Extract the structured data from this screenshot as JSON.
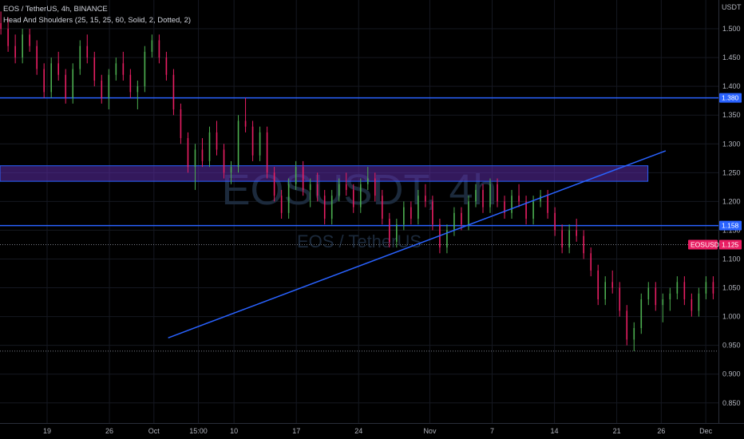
{
  "header": {
    "symbol_line": "EOS / TetherUS, 4h, BINANCE",
    "indicator_line": "Head And Shoulders (25, 15, 25, 60, Solid, 2, Dotted, 2)"
  },
  "watermark": {
    "main": "EOSUSDT, 4h",
    "sub": "EOS / TetherUS"
  },
  "chart_data": {
    "type": "candlestick",
    "currency": "USDT",
    "ylim": [
      0.815,
      1.55
    ],
    "y_ticks": [
      "1.500",
      "1.450",
      "1.400",
      "1.350",
      "1.300",
      "1.250",
      "1.200",
      "1.150",
      "1.100",
      "1.050",
      "1.000",
      "0.950",
      "0.900",
      "0.850"
    ],
    "x_ticks": [
      {
        "label": "19",
        "day": 0
      },
      {
        "label": "26",
        "day": 7
      },
      {
        "label": "Oct",
        "day": 12
      },
      {
        "label": "15:00",
        "day": 17
      },
      {
        "label": "10",
        "day": 21
      },
      {
        "label": "17",
        "day": 28
      },
      {
        "label": "24",
        "day": 35
      },
      {
        "label": "Nov",
        "day": 43
      },
      {
        "label": "7",
        "day": 50
      },
      {
        "label": "14",
        "day": 57
      },
      {
        "label": "21",
        "day": 64
      },
      {
        "label": "26",
        "day": 69
      },
      {
        "label": "Dec",
        "day": 74
      }
    ],
    "horizontal_levels": [
      {
        "value": 1.38,
        "label": "1.380",
        "color": "#2962ff"
      },
      {
        "value": 1.158,
        "label": "1.158",
        "color": "#2962ff"
      }
    ],
    "last_price": {
      "value": 1.125,
      "symbol": "EOSUSDT",
      "label": "1.125",
      "color": "#e91e63"
    },
    "dotted_level": 0.94,
    "zone": {
      "top": 1.262,
      "bottom": 1.235,
      "from_day": -6,
      "to_day": 67.5,
      "color": "#5c2ea8"
    },
    "trendline": {
      "from": [
        13.6,
        0.963
      ],
      "to": [
        69.5,
        1.288
      ],
      "color": "#2962ff"
    },
    "colors": {
      "up": "#26a69a",
      "down": "#ef5350",
      "bright_up": "#4caf50",
      "bright_down": "#e91e63"
    },
    "candle_day_step": 0.16667,
    "start_day": -6.0,
    "candles": [
      [
        1.48,
        1.52,
        1.47,
        1.51
      ],
      [
        1.51,
        1.53,
        1.49,
        1.5
      ],
      [
        1.5,
        1.52,
        1.46,
        1.47
      ],
      [
        1.47,
        1.49,
        1.44,
        1.45
      ],
      [
        1.45,
        1.5,
        1.44,
        1.49
      ],
      [
        1.49,
        1.5,
        1.46,
        1.47
      ],
      [
        1.47,
        1.48,
        1.42,
        1.43
      ],
      [
        1.43,
        1.44,
        1.38,
        1.39
      ],
      [
        1.39,
        1.45,
        1.38,
        1.44
      ],
      [
        1.44,
        1.46,
        1.41,
        1.42
      ],
      [
        1.42,
        1.43,
        1.37,
        1.38
      ],
      [
        1.38,
        1.44,
        1.37,
        1.43
      ],
      [
        1.43,
        1.48,
        1.42,
        1.47
      ],
      [
        1.47,
        1.49,
        1.44,
        1.45
      ],
      [
        1.45,
        1.46,
        1.4,
        1.41
      ],
      [
        1.41,
        1.42,
        1.37,
        1.38
      ],
      [
        1.38,
        1.43,
        1.36,
        1.42
      ],
      [
        1.42,
        1.45,
        1.41,
        1.44
      ],
      [
        1.44,
        1.46,
        1.41,
        1.42
      ],
      [
        1.42,
        1.43,
        1.38,
        1.39
      ],
      [
        1.39,
        1.41,
        1.36,
        1.4
      ],
      [
        1.4,
        1.47,
        1.39,
        1.46
      ],
      [
        1.46,
        1.49,
        1.45,
        1.48
      ],
      [
        1.48,
        1.49,
        1.44,
        1.45
      ],
      [
        1.45,
        1.46,
        1.41,
        1.42
      ],
      [
        1.42,
        1.43,
        1.35,
        1.36
      ],
      [
        1.36,
        1.37,
        1.3,
        1.31
      ],
      [
        1.31,
        1.32,
        1.25,
        1.26
      ],
      [
        1.26,
        1.3,
        1.22,
        1.29
      ],
      [
        1.29,
        1.31,
        1.26,
        1.27
      ],
      [
        1.27,
        1.33,
        1.26,
        1.32
      ],
      [
        1.32,
        1.34,
        1.28,
        1.29
      ],
      [
        1.29,
        1.3,
        1.24,
        1.25
      ],
      [
        1.25,
        1.27,
        1.23,
        1.26
      ],
      [
        1.26,
        1.35,
        1.25,
        1.34
      ],
      [
        1.34,
        1.38,
        1.32,
        1.33
      ],
      [
        1.33,
        1.34,
        1.27,
        1.28
      ],
      [
        1.28,
        1.33,
        1.27,
        1.32
      ],
      [
        1.32,
        1.33,
        1.24,
        1.25
      ],
      [
        1.25,
        1.26,
        1.2,
        1.21
      ],
      [
        1.21,
        1.22,
        1.17,
        1.18
      ],
      [
        1.18,
        1.24,
        1.17,
        1.23
      ],
      [
        1.23,
        1.27,
        1.22,
        1.26
      ],
      [
        1.26,
        1.27,
        1.21,
        1.22
      ],
      [
        1.22,
        1.24,
        1.19,
        1.23
      ],
      [
        1.23,
        1.25,
        1.2,
        1.21
      ],
      [
        1.21,
        1.22,
        1.16,
        1.17
      ],
      [
        1.17,
        1.22,
        1.16,
        1.21
      ],
      [
        1.21,
        1.24,
        1.2,
        1.23
      ],
      [
        1.23,
        1.25,
        1.21,
        1.22
      ],
      [
        1.22,
        1.23,
        1.18,
        1.19
      ],
      [
        1.19,
        1.24,
        1.18,
        1.23
      ],
      [
        1.23,
        1.26,
        1.22,
        1.24
      ],
      [
        1.24,
        1.25,
        1.2,
        1.21
      ],
      [
        1.21,
        1.22,
        1.16,
        1.17
      ],
      [
        1.17,
        1.18,
        1.12,
        1.13
      ],
      [
        1.13,
        1.17,
        1.12,
        1.16
      ],
      [
        1.16,
        1.2,
        1.15,
        1.19
      ],
      [
        1.19,
        1.2,
        1.16,
        1.17
      ],
      [
        1.17,
        1.22,
        1.16,
        1.21
      ],
      [
        1.21,
        1.23,
        1.19,
        1.2
      ],
      [
        1.2,
        1.21,
        1.15,
        1.16
      ],
      [
        1.16,
        1.17,
        1.11,
        1.12
      ],
      [
        1.12,
        1.16,
        1.11,
        1.15
      ],
      [
        1.15,
        1.19,
        1.14,
        1.18
      ],
      [
        1.18,
        1.19,
        1.15,
        1.16
      ],
      [
        1.16,
        1.21,
        1.15,
        1.2
      ],
      [
        1.2,
        1.23,
        1.19,
        1.22
      ],
      [
        1.22,
        1.23,
        1.18,
        1.19
      ],
      [
        1.19,
        1.24,
        1.18,
        1.23
      ],
      [
        1.23,
        1.24,
        1.19,
        1.2
      ],
      [
        1.2,
        1.21,
        1.17,
        1.18
      ],
      [
        1.18,
        1.22,
        1.17,
        1.21
      ],
      [
        1.21,
        1.23,
        1.19,
        1.2
      ],
      [
        1.2,
        1.21,
        1.16,
        1.17
      ],
      [
        1.17,
        1.21,
        1.16,
        1.2
      ],
      [
        1.2,
        1.22,
        1.19,
        1.21
      ],
      [
        1.21,
        1.22,
        1.17,
        1.18
      ],
      [
        1.18,
        1.19,
        1.14,
        1.15
      ],
      [
        1.15,
        1.16,
        1.11,
        1.12
      ],
      [
        1.12,
        1.16,
        1.11,
        1.15
      ],
      [
        1.15,
        1.17,
        1.13,
        1.14
      ],
      [
        1.14,
        1.15,
        1.1,
        1.11
      ],
      [
        1.11,
        1.12,
        1.07,
        1.08
      ],
      [
        1.08,
        1.09,
        1.02,
        1.03
      ],
      [
        1.03,
        1.07,
        1.02,
        1.06
      ],
      [
        1.06,
        1.08,
        1.04,
        1.05
      ],
      [
        1.05,
        1.06,
        1.0,
        1.01
      ],
      [
        1.01,
        1.02,
        0.95,
        0.96
      ],
      [
        0.96,
        0.99,
        0.94,
        0.98
      ],
      [
        0.98,
        1.04,
        0.97,
        1.03
      ],
      [
        1.03,
        1.06,
        1.02,
        1.05
      ],
      [
        1.05,
        1.06,
        1.01,
        1.02
      ],
      [
        1.02,
        1.04,
        0.99,
        1.03
      ],
      [
        1.03,
        1.05,
        1.01,
        1.04
      ],
      [
        1.04,
        1.07,
        1.03,
        1.06
      ],
      [
        1.06,
        1.07,
        1.02,
        1.03
      ],
      [
        1.03,
        1.04,
        1.0,
        1.01
      ],
      [
        1.01,
        1.05,
        1.0,
        1.04
      ],
      [
        1.04,
        1.07,
        1.03,
        1.06
      ],
      [
        1.06,
        1.07,
        1.03,
        1.04
      ],
      [
        1.04,
        1.05,
        1.01,
        1.02
      ],
      [
        1.02,
        1.03,
        0.99,
        1.0
      ],
      [
        1.0,
        1.04,
        0.99,
        1.03
      ],
      [
        1.03,
        1.05,
        1.02,
        1.04
      ],
      [
        1.04,
        1.06,
        1.03,
        1.05
      ],
      [
        1.05,
        1.07,
        1.04,
        1.06
      ],
      [
        1.06,
        1.07,
        1.03,
        1.04
      ],
      [
        1.04,
        1.08,
        1.03,
        1.07
      ],
      [
        1.07,
        1.09,
        1.06,
        1.08
      ],
      [
        1.08,
        1.09,
        1.05,
        1.06
      ],
      [
        1.06,
        1.1,
        1.05,
        1.09
      ],
      [
        1.09,
        1.11,
        1.07,
        1.08
      ],
      [
        1.08,
        1.09,
        1.05,
        1.06
      ],
      [
        1.06,
        1.07,
        1.04,
        1.05
      ],
      [
        1.05,
        1.09,
        1.04,
        1.08
      ],
      [
        1.08,
        1.1,
        1.07,
        1.09
      ],
      [
        1.09,
        1.11,
        1.08,
        1.1
      ],
      [
        1.1,
        1.12,
        1.08,
        1.09
      ],
      [
        1.09,
        1.1,
        1.06,
        1.07
      ],
      [
        1.07,
        1.11,
        1.06,
        1.1
      ],
      [
        1.1,
        1.13,
        1.09,
        1.12
      ],
      [
        1.12,
        1.15,
        1.11,
        1.14
      ],
      [
        1.14,
        1.16,
        1.12,
        1.13
      ],
      [
        1.13,
        1.14,
        1.1,
        1.11
      ],
      [
        1.11,
        1.14,
        1.1,
        1.13
      ],
      [
        1.13,
        1.14,
        1.11,
        1.12
      ],
      [
        1.12,
        1.13,
        1.1,
        1.125
      ]
    ]
  }
}
